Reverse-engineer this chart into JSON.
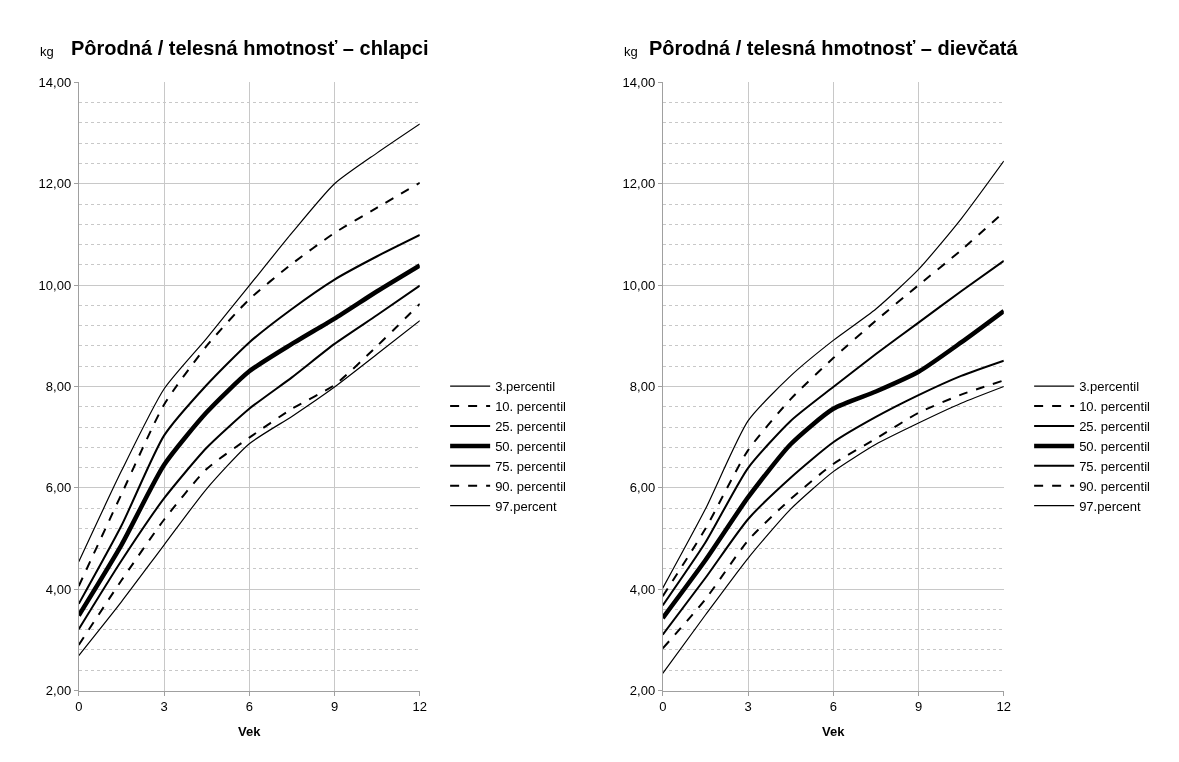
{
  "chart_data": [
    {
      "type": "line",
      "title": "Pôrodná / telesná hmotnosť – chlapci",
      "xlabel": "Vek",
      "ylabel": "kg",
      "x": [
        0,
        1.5,
        3,
        4.5,
        6,
        7.5,
        9,
        10.5,
        12
      ],
      "xlim": [
        0,
        12
      ],
      "xticks": [
        0,
        3,
        6,
        9,
        12
      ],
      "ylim": [
        2,
        14
      ],
      "yticks": [
        {
          "value": 2,
          "label": "2,00"
        },
        {
          "value": 4,
          "label": "4,00"
        },
        {
          "value": 6,
          "label": "6,00"
        },
        {
          "value": 8,
          "label": "8,00"
        },
        {
          "value": 10,
          "label": "10,00"
        },
        {
          "value": 12,
          "label": "12,00"
        },
        {
          "value": 14,
          "label": "14,00"
        }
      ],
      "grid": true,
      "legend": "right",
      "series": [
        {
          "name": "3.percentil",
          "color": "#000000",
          "line_style": "solid",
          "values": [
            2.69,
            3.75,
            4.87,
            5.98,
            6.87,
            7.41,
            7.99,
            8.64,
            9.3
          ]
        },
        {
          "name": "10. percentil",
          "color": "#000000",
          "line_style": "dashed",
          "values": [
            2.9,
            4.17,
            5.37,
            6.37,
            6.99,
            7.56,
            8.03,
            8.8,
            9.63
          ]
        },
        {
          "name": "25. percentil",
          "color": "#000000",
          "line_style": "solid",
          "values": [
            3.21,
            4.56,
            5.79,
            6.79,
            7.56,
            8.18,
            8.84,
            9.41,
            9.99
          ]
        },
        {
          "name": "50. percentil",
          "color": "#000000",
          "line_style": "solid",
          "values": [
            3.48,
            4.87,
            6.45,
            7.49,
            8.3,
            8.84,
            9.34,
            9.88,
            10.39
          ]
        },
        {
          "name": "75. percentil",
          "color": "#000000",
          "line_style": "solid",
          "values": [
            3.71,
            5.25,
            7.03,
            8.03,
            8.87,
            9.53,
            10.11,
            10.57,
            10.99
          ]
        },
        {
          "name": "90. percentil",
          "color": "#000000",
          "line_style": "dashed",
          "values": [
            4.06,
            5.87,
            7.64,
            8.8,
            9.72,
            10.42,
            11.03,
            11.53,
            12.02
          ]
        },
        {
          "name": "97.percent",
          "color": "#000000",
          "line_style": "solid",
          "values": [
            4.54,
            6.33,
            7.95,
            8.95,
            9.99,
            11.03,
            12.0,
            12.61,
            13.18
          ]
        }
      ]
    },
    {
      "type": "line",
      "title": "Pôrodná / telesná hmotnosť – dievčatá",
      "xlabel": "Vek",
      "ylabel": "kg",
      "x": [
        0,
        1.5,
        3,
        4.5,
        6,
        7.5,
        9,
        10.5,
        12
      ],
      "xlim": [
        0,
        12
      ],
      "xticks": [
        0,
        3,
        6,
        9,
        12
      ],
      "ylim": [
        2,
        14
      ],
      "yticks": [
        {
          "value": 2,
          "label": "2,00"
        },
        {
          "value": 4,
          "label": "4,00"
        },
        {
          "value": 6,
          "label": "6,00"
        },
        {
          "value": 8,
          "label": "8,00"
        },
        {
          "value": 10,
          "label": "10,00"
        },
        {
          "value": 12,
          "label": "12,00"
        },
        {
          "value": 14,
          "label": "14,00"
        }
      ],
      "grid": true,
      "legend": "right",
      "series": [
        {
          "name": "3.percentil",
          "color": "#000000",
          "line_style": "solid",
          "values": [
            2.34,
            3.49,
            4.61,
            5.58,
            6.32,
            6.86,
            7.28,
            7.67,
            8.0
          ]
        },
        {
          "name": "10. percentil",
          "color": "#000000",
          "line_style": "dashed",
          "values": [
            2.83,
            3.8,
            4.96,
            5.78,
            6.47,
            6.97,
            7.48,
            7.84,
            8.12
          ]
        },
        {
          "name": "25. percentil",
          "color": "#000000",
          "line_style": "solid",
          "values": [
            3.1,
            4.22,
            5.38,
            6.2,
            6.9,
            7.4,
            7.83,
            8.21,
            8.51
          ]
        },
        {
          "name": "50. percentil",
          "color": "#000000",
          "line_style": "solid",
          "values": [
            3.43,
            4.57,
            5.81,
            6.86,
            7.56,
            7.9,
            8.29,
            8.87,
            9.49
          ]
        },
        {
          "name": "75. percentil",
          "color": "#000000",
          "line_style": "solid",
          "values": [
            3.68,
            4.92,
            6.39,
            7.32,
            7.99,
            8.64,
            9.26,
            9.88,
            10.48
          ]
        },
        {
          "name": "90. percentil",
          "color": "#000000",
          "line_style": "dashed",
          "values": [
            3.86,
            5.19,
            6.74,
            7.75,
            8.56,
            9.3,
            10.0,
            10.69,
            11.44
          ]
        },
        {
          "name": "97.percent",
          "color": "#000000",
          "line_style": "solid",
          "values": [
            4.02,
            5.58,
            7.32,
            8.21,
            8.91,
            9.53,
            10.31,
            11.31,
            12.45
          ]
        }
      ]
    }
  ]
}
